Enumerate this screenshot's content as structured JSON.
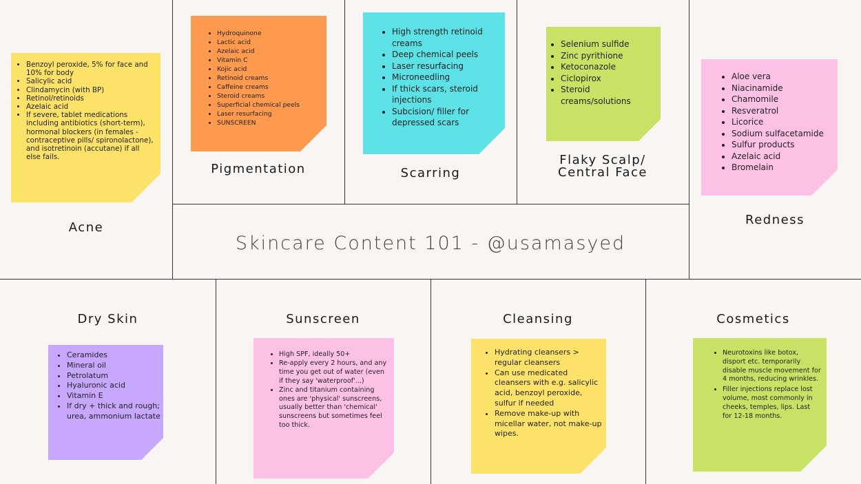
{
  "title": "Skincare Content 101 - @usamasyed",
  "colors": {
    "yellow": "#fde26a",
    "orange": "#fe9a50",
    "cyan": "#5ce1e6",
    "lime": "#c9e265",
    "pink": "#fdc1e5",
    "purple": "#c7a7fc"
  },
  "panels": {
    "acne": {
      "label": "Acne",
      "items": [
        "Benzoyl peroxide, 5%  for face and 10% for body",
        "Salicylic acid",
        "Clindamycin (with BP)",
        "Retinol/retinoids",
        "Azelaic acid",
        "If severe, tablet medications including antibiotics (short-term), hormonal blockers (in females - contraceptive pills/ spironolactone), and isotretinoin (accutane) if all else fails."
      ]
    },
    "pigmentation": {
      "label": "Pigmentation",
      "items": [
        "Hydroquinone",
        "Lactic acid",
        "Azelaic acid",
        "Vitamin C",
        "Kojic acid",
        "Retinoid creams",
        "Caffeine creams",
        "Steroid creams",
        "Superficial chemical peels",
        "Laser resurfacing",
        "SUNSCREEN"
      ]
    },
    "scarring": {
      "label": "Scarring",
      "items": [
        "High strength retinoid creams",
        "Deep chemical peels",
        "Laser resurfacing",
        "Microneedling",
        "If thick scars, steroid injections",
        "Subcision/ filler for depressed scars"
      ]
    },
    "flaky": {
      "label_line1": "Flaky Scalp/",
      "label_line2": "Central Face",
      "items": [
        "Selenium sulfide",
        "Zinc pyrithione",
        "Ketoconazole",
        "Ciclopirox",
        "Steroid creams/solutions"
      ]
    },
    "redness": {
      "label": "Redness",
      "items": [
        "Aloe vera",
        "Niacinamide",
        "Chamomile",
        "Resveratrol",
        "Licorice",
        "Sodium sulfacetamide",
        "Sulfur products",
        "Azelaic acid",
        "Bromelain"
      ]
    },
    "dry": {
      "label": "Dry Skin",
      "items": [
        "Ceramides",
        "Mineral oil",
        "Petrolatum",
        "Hyaluronic acid",
        "Vitamin E",
        "If dry + thick and rough; urea, ammonium lactate"
      ]
    },
    "sunscreen": {
      "label": "Sunscreen",
      "items": [
        "High SPF, ideally 50+",
        "Re-apply every 2 hours, and any time you get out of water (even if they say 'waterproof'...)",
        "Zinc and titanium containing ones are 'physical' sunscreens, usually better than 'chemical' sunscreens but sometimes feel too thick."
      ]
    },
    "cleansing": {
      "label": "Cleansing",
      "items": [
        "Hydrating cleansers > regular cleansers",
        "Can use medicated cleansers with e.g. salicylic acid, benzoyl peroxide, sulfur if needed",
        "Remove make-up with micellar water, not make-up wipes."
      ]
    },
    "cosmetics": {
      "label": "Cosmetics",
      "items": [
        "Neurotoxins like botox, disport etc. temporarily disable muscle movement for 4 months, reducing wrinkles.",
        "Filler injections replace lost volume, most commonly in cheeks, temples, lips. Last for 12-18 months."
      ]
    }
  }
}
